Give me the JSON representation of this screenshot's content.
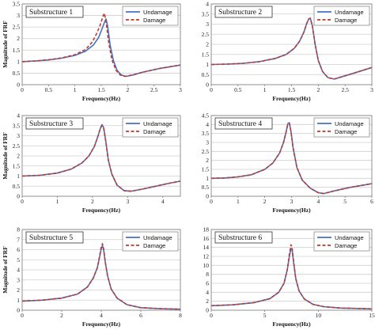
{
  "chart_data": [
    {
      "type": "line",
      "title": "Substructure 1",
      "xlabel": "Frequency(Hz)",
      "ylabel": "Magnitude of FRF",
      "xlim": [
        0,
        3
      ],
      "ylim": [
        0,
        3.5
      ],
      "xticks": [
        "0",
        "0.5",
        "1",
        "1.5",
        "2",
        "2.5",
        "3"
      ],
      "yticks": [
        "0",
        "0.5",
        "1",
        "1.5",
        "2",
        "2.5",
        "3",
        "3.5"
      ],
      "legend": "top-right",
      "series": [
        {
          "name": "Undamage",
          "color": "#4472c4",
          "style": "solid",
          "x": [
            0,
            0.25,
            0.5,
            0.75,
            1.0,
            1.2,
            1.35,
            1.45,
            1.52,
            1.56,
            1.59,
            1.62,
            1.67,
            1.73,
            1.8,
            1.88,
            1.97,
            2.1,
            2.3,
            2.6,
            3.0
          ],
          "y": [
            1.0,
            1.03,
            1.07,
            1.15,
            1.27,
            1.45,
            1.72,
            2.05,
            2.45,
            2.7,
            2.85,
            2.55,
            1.7,
            1.05,
            0.62,
            0.42,
            0.36,
            0.42,
            0.55,
            0.7,
            0.85
          ]
        },
        {
          "name": "Damage",
          "color": "#c0392b",
          "style": "dashed",
          "x": [
            0,
            0.25,
            0.5,
            0.75,
            1.0,
            1.2,
            1.33,
            1.42,
            1.49,
            1.53,
            1.56,
            1.59,
            1.64,
            1.7,
            1.78,
            1.86,
            1.95,
            2.08,
            2.3,
            2.6,
            3.0
          ],
          "y": [
            1.0,
            1.03,
            1.08,
            1.16,
            1.3,
            1.52,
            1.85,
            2.25,
            2.65,
            2.95,
            3.1,
            2.75,
            1.85,
            1.1,
            0.62,
            0.42,
            0.36,
            0.42,
            0.55,
            0.7,
            0.85
          ]
        }
      ]
    },
    {
      "type": "line",
      "title": "Substructure 2",
      "xlabel": "Frequency(Hz)",
      "ylabel": "",
      "xlim": [
        0,
        3
      ],
      "ylim": [
        0,
        4
      ],
      "xticks": [
        "0",
        "0.5",
        "1",
        "1.5",
        "2",
        "2.5",
        "3"
      ],
      "yticks": [
        "0",
        "0.5",
        "1",
        "1.5",
        "2",
        "2.5",
        "3",
        "3.5",
        "4"
      ],
      "legend": "top-right",
      "series": [
        {
          "name": "Undamage",
          "color": "#4472c4",
          "style": "solid",
          "x": [
            0,
            0.3,
            0.6,
            0.9,
            1.2,
            1.4,
            1.55,
            1.65,
            1.73,
            1.78,
            1.82,
            1.85,
            1.89,
            1.94,
            2.0,
            2.08,
            2.18,
            2.3,
            2.45,
            2.7,
            3.0
          ],
          "y": [
            1.0,
            1.02,
            1.06,
            1.14,
            1.3,
            1.5,
            1.8,
            2.15,
            2.6,
            3.0,
            3.25,
            3.3,
            2.9,
            2.0,
            1.2,
            0.65,
            0.35,
            0.28,
            0.4,
            0.6,
            0.85
          ]
        },
        {
          "name": "Damage",
          "color": "#c0392b",
          "style": "dashed",
          "x": [
            0,
            0.3,
            0.6,
            0.9,
            1.2,
            1.4,
            1.55,
            1.65,
            1.73,
            1.78,
            1.82,
            1.85,
            1.89,
            1.94,
            2.0,
            2.08,
            2.18,
            2.3,
            2.45,
            2.7,
            3.0
          ],
          "y": [
            1.0,
            1.02,
            1.06,
            1.14,
            1.3,
            1.5,
            1.8,
            2.15,
            2.6,
            3.0,
            3.25,
            3.3,
            2.9,
            2.0,
            1.2,
            0.65,
            0.35,
            0.28,
            0.4,
            0.6,
            0.85
          ]
        }
      ]
    },
    {
      "type": "line",
      "title": "Substructure 3",
      "xlabel": "Frequency(Hz)",
      "ylabel": "Magnitude of FRF",
      "xlim": [
        0,
        4.5
      ],
      "ylim": [
        0,
        4
      ],
      "xticks": [
        "0",
        "1",
        "2",
        "3",
        "4"
      ],
      "yticks": [
        "0",
        "0.5",
        "1",
        "1.5",
        "2",
        "2.5",
        "3",
        "3.5",
        "4"
      ],
      "legend": "top-right",
      "series": [
        {
          "name": "Undamage",
          "color": "#4472c4",
          "style": "solid",
          "x": [
            0,
            0.5,
            1.0,
            1.4,
            1.7,
            1.9,
            2.05,
            2.15,
            2.22,
            2.27,
            2.32,
            2.38,
            2.45,
            2.55,
            2.7,
            2.9,
            3.1,
            3.4,
            3.8,
            4.2,
            4.5
          ],
          "y": [
            1.0,
            1.04,
            1.15,
            1.35,
            1.65,
            2.0,
            2.45,
            2.95,
            3.35,
            3.55,
            3.4,
            2.7,
            1.8,
            1.1,
            0.55,
            0.28,
            0.25,
            0.35,
            0.5,
            0.65,
            0.75
          ]
        },
        {
          "name": "Damage",
          "color": "#c0392b",
          "style": "dashed",
          "x": [
            0,
            0.5,
            1.0,
            1.4,
            1.7,
            1.9,
            2.05,
            2.15,
            2.22,
            2.27,
            2.32,
            2.38,
            2.45,
            2.55,
            2.7,
            2.9,
            3.1,
            3.4,
            3.8,
            4.2,
            4.5
          ],
          "y": [
            1.0,
            1.04,
            1.15,
            1.35,
            1.65,
            2.0,
            2.45,
            2.95,
            3.35,
            3.5,
            3.35,
            2.7,
            1.8,
            1.1,
            0.55,
            0.28,
            0.25,
            0.35,
            0.5,
            0.65,
            0.75
          ]
        }
      ]
    },
    {
      "type": "line",
      "title": "Substructure 4",
      "xlabel": "Frequency(Hz)",
      "ylabel": "",
      "xlim": [
        0,
        6
      ],
      "ylim": [
        0,
        4.5
      ],
      "xticks": [
        "0",
        "1",
        "2",
        "3",
        "4",
        "5",
        "6"
      ],
      "yticks": [
        "0",
        "0.5",
        "1",
        "1.5",
        "2",
        "2.5",
        "3",
        "3.5",
        "4",
        "4.5"
      ],
      "legend": "top-right",
      "series": [
        {
          "name": "Undamage",
          "color": "#4472c4",
          "style": "solid",
          "x": [
            0,
            0.5,
            1.0,
            1.5,
            2.0,
            2.3,
            2.55,
            2.7,
            2.8,
            2.86,
            2.92,
            2.98,
            3.06,
            3.2,
            3.4,
            3.7,
            4.0,
            4.2,
            4.6,
            5.2,
            6.0
          ],
          "y": [
            1.0,
            1.02,
            1.08,
            1.2,
            1.5,
            1.85,
            2.4,
            3.0,
            3.6,
            4.05,
            4.1,
            3.6,
            2.7,
            1.6,
            0.9,
            0.45,
            0.2,
            0.15,
            0.3,
            0.5,
            0.7
          ]
        },
        {
          "name": "Damage",
          "color": "#c0392b",
          "style": "dashed",
          "x": [
            0,
            0.5,
            1.0,
            1.5,
            2.0,
            2.3,
            2.55,
            2.7,
            2.8,
            2.86,
            2.92,
            2.98,
            3.06,
            3.2,
            3.4,
            3.7,
            4.0,
            4.2,
            4.6,
            5.2,
            6.0
          ],
          "y": [
            1.0,
            1.02,
            1.08,
            1.2,
            1.5,
            1.85,
            2.4,
            3.0,
            3.6,
            4.0,
            4.05,
            3.6,
            2.7,
            1.6,
            0.9,
            0.45,
            0.2,
            0.15,
            0.3,
            0.5,
            0.7
          ]
        }
      ]
    },
    {
      "type": "line",
      "title": "Substructure 5",
      "xlabel": "Frequency(Hz)",
      "ylabel": "Magnitude of FRF",
      "xlim": [
        0,
        8
      ],
      "ylim": [
        0,
        8
      ],
      "xticks": [
        "0",
        "2",
        "4",
        "6",
        "8"
      ],
      "yticks": [
        "0",
        "1",
        "2",
        "3",
        "4",
        "5",
        "6",
        "7",
        "8"
      ],
      "legend": "top-right",
      "series": [
        {
          "name": "Undamage",
          "color": "#4472c4",
          "style": "solid",
          "x": [
            0,
            1.0,
            2.0,
            2.8,
            3.3,
            3.6,
            3.8,
            3.92,
            4.0,
            4.06,
            4.12,
            4.2,
            4.32,
            4.5,
            4.8,
            5.3,
            6.0,
            7.0,
            8.0
          ],
          "y": [
            0.9,
            1.0,
            1.2,
            1.6,
            2.3,
            3.2,
            4.2,
            5.3,
            6.1,
            6.4,
            6.0,
            4.8,
            3.4,
            2.1,
            1.2,
            0.55,
            0.25,
            0.15,
            0.1
          ]
        },
        {
          "name": "Damage",
          "color": "#c0392b",
          "style": "dashed",
          "x": [
            0,
            1.0,
            2.0,
            2.8,
            3.3,
            3.6,
            3.8,
            3.92,
            4.0,
            4.06,
            4.12,
            4.2,
            4.32,
            4.5,
            4.8,
            5.3,
            6.0,
            7.0,
            8.0
          ],
          "y": [
            0.9,
            1.0,
            1.2,
            1.6,
            2.3,
            3.2,
            4.2,
            5.4,
            6.3,
            6.6,
            6.1,
            4.8,
            3.4,
            2.1,
            1.2,
            0.55,
            0.25,
            0.15,
            0.1
          ]
        }
      ]
    },
    {
      "type": "line",
      "title": "Substructure 6",
      "xlabel": "Frequency(Hz)",
      "ylabel": "",
      "xlim": [
        0,
        15
      ],
      "ylim": [
        0,
        18
      ],
      "xticks": [
        "0",
        "5",
        "10",
        "15"
      ],
      "yticks": [
        "0",
        "2",
        "4",
        "6",
        "8",
        "10",
        "12",
        "14",
        "16",
        "18"
      ],
      "legend": "top-right",
      "series": [
        {
          "name": "Undamage",
          "color": "#4472c4",
          "style": "solid",
          "x": [
            0,
            2,
            4,
            5.5,
            6.3,
            6.8,
            7.1,
            7.3,
            7.45,
            7.55,
            7.7,
            7.9,
            8.2,
            8.7,
            9.5,
            10.5,
            12,
            15
          ],
          "y": [
            1.0,
            1.2,
            1.7,
            2.6,
            4.0,
            6.0,
            9.0,
            12.0,
            13.8,
            13.5,
            10.5,
            7.0,
            4.3,
            2.5,
            1.3,
            0.8,
            0.5,
            0.3
          ]
        },
        {
          "name": "Damage",
          "color": "#c0392b",
          "style": "dashed",
          "x": [
            0,
            2,
            4,
            5.5,
            6.3,
            6.8,
            7.1,
            7.3,
            7.45,
            7.55,
            7.7,
            7.9,
            8.2,
            8.7,
            9.5,
            10.5,
            12,
            15
          ],
          "y": [
            1.0,
            1.2,
            1.7,
            2.6,
            4.0,
            6.0,
            9.0,
            12.5,
            14.6,
            14.0,
            10.8,
            7.0,
            4.3,
            2.5,
            1.3,
            0.8,
            0.5,
            0.3
          ]
        }
      ]
    }
  ]
}
